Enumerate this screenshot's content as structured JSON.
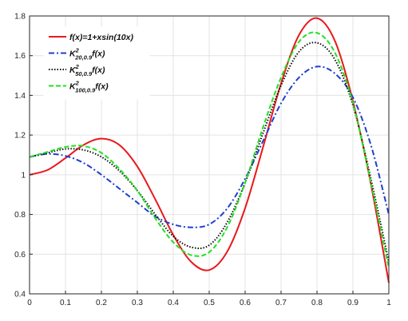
{
  "chart_data": {
    "type": "line",
    "xlim": [
      0,
      1
    ],
    "ylim": [
      0.4,
      1.8
    ],
    "xticks": [
      "0",
      "0.1",
      "0.2",
      "0.3",
      "0.4",
      "0.5",
      "0.6",
      "0.7",
      "0.8",
      "0.9",
      "1"
    ],
    "yticks": [
      "0.4",
      "0.6",
      "0.8",
      "1",
      "1.2",
      "1.4",
      "1.6",
      "1.8"
    ],
    "grid": true,
    "legend_position": "top-left",
    "series": [
      {
        "name": "f(x)=1+xsin(10x)",
        "color": "#e8191d",
        "style": "solid",
        "x": [
          0,
          0.05,
          0.1,
          0.15,
          0.2,
          0.25,
          0.3,
          0.35,
          0.4,
          0.45,
          0.5,
          0.55,
          0.6,
          0.65,
          0.7,
          0.75,
          0.8,
          0.85,
          0.9,
          0.95,
          1.0
        ],
        "values": [
          1.0,
          1.024,
          1.084,
          1.15,
          1.182,
          1.15,
          1.042,
          0.876,
          0.697,
          0.561,
          0.52,
          0.612,
          0.832,
          1.14,
          1.46,
          1.704,
          1.789,
          1.674,
          1.371,
          0.953,
          0.456
        ]
      },
      {
        "name": "K^2_{20,0.9}f(x)",
        "label_main": "K",
        "label_sup": "2",
        "label_sub": "20,0.9",
        "label_tail": "f(x)",
        "color": "#1f3fcf",
        "style": "dashdot",
        "x": [
          0,
          0.05,
          0.1,
          0.15,
          0.2,
          0.25,
          0.3,
          0.35,
          0.4,
          0.45,
          0.5,
          0.55,
          0.6,
          0.65,
          0.7,
          0.75,
          0.8,
          0.85,
          0.9,
          0.95,
          1.0
        ],
        "values": [
          1.09,
          1.105,
          1.095,
          1.06,
          1.0,
          0.93,
          0.86,
          0.79,
          0.75,
          0.735,
          0.75,
          0.83,
          0.98,
          1.17,
          1.36,
          1.49,
          1.545,
          1.51,
          1.39,
          1.15,
          0.8
        ]
      },
      {
        "name": "K^2_{50,0.9}f(x)",
        "label_main": "K",
        "label_sup": "2",
        "label_sub": "50,0.9",
        "label_tail": "f(x)",
        "color": "#111111",
        "style": "dotted",
        "x": [
          0,
          0.05,
          0.1,
          0.15,
          0.2,
          0.25,
          0.3,
          0.35,
          0.4,
          0.45,
          0.5,
          0.55,
          0.6,
          0.65,
          0.7,
          0.75,
          0.8,
          0.85,
          0.9,
          0.95,
          1.0
        ],
        "values": [
          1.09,
          1.11,
          1.13,
          1.125,
          1.09,
          1.02,
          0.92,
          0.8,
          0.69,
          0.635,
          0.645,
          0.76,
          0.96,
          1.21,
          1.45,
          1.62,
          1.665,
          1.58,
          1.35,
          0.98,
          0.56
        ]
      },
      {
        "name": "K^2_{100,0.9}f(x)",
        "label_main": "K",
        "label_sup": "2",
        "label_sub": "100,0.9",
        "label_tail": "f(x)",
        "color": "#22e022",
        "style": "dashed",
        "x": [
          0,
          0.05,
          0.1,
          0.15,
          0.2,
          0.25,
          0.3,
          0.35,
          0.4,
          0.45,
          0.5,
          0.55,
          0.6,
          0.65,
          0.7,
          0.75,
          0.8,
          0.85,
          0.9,
          0.95,
          1.0
        ],
        "values": [
          1.09,
          1.115,
          1.14,
          1.145,
          1.11,
          1.03,
          0.92,
          0.78,
          0.66,
          0.595,
          0.61,
          0.735,
          0.96,
          1.24,
          1.49,
          1.67,
          1.715,
          1.615,
          1.36,
          0.96,
          0.53
        ]
      }
    ]
  }
}
